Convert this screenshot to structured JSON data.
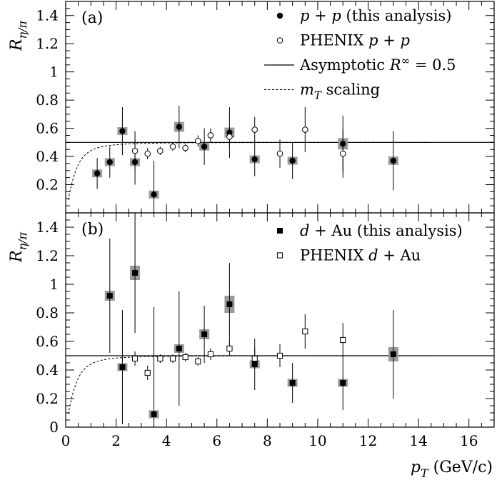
{
  "chart_data": [
    {
      "type": "scatter",
      "panel_label": "(a)",
      "ylabel": "R_{η/π}",
      "xlim": [
        0,
        17
      ],
      "ylim": [
        0,
        1.5
      ],
      "yticks": [
        0.2,
        0.4,
        0.6,
        0.8,
        1,
        1.2,
        1.4
      ],
      "ytick_labels": [
        "0.2",
        "0.4",
        "0.6",
        "0.8",
        "1",
        "1.2",
        "1.4"
      ],
      "legend_position": "top-right",
      "legend": [
        {
          "marker": "filled-circle",
          "text": "p + p (this analysis)"
        },
        {
          "marker": "open-circle",
          "text": "PHENIX p + p"
        },
        {
          "marker": "solid-line",
          "text": "Asymptotic R^∞ = 0.5"
        },
        {
          "marker": "dashed-line",
          "text": "m_T scaling"
        }
      ],
      "asymptote": {
        "y": 0.5,
        "x_range": [
          0,
          17
        ]
      },
      "mt_scaling": {
        "x_range": [
          0.1,
          14.5
        ],
        "asymptote": 0.5
      },
      "series": [
        {
          "name": "p + p (this analysis)",
          "marker": "filled-circle",
          "points": [
            {
              "x": 1.25,
              "y": 0.28,
              "err": 0.11,
              "sys": 0.012
            },
            {
              "x": 1.75,
              "y": 0.36,
              "err": 0.11,
              "sys": 0.015
            },
            {
              "x": 2.25,
              "y": 0.58,
              "err": 0.17,
              "sys": 0.025
            },
            {
              "x": 2.75,
              "y": 0.36,
              "err": 0.16,
              "sys": 0.02
            },
            {
              "x": 3.5,
              "y": 0.13,
              "err": 0.24,
              "sys": 0.005
            },
            {
              "x": 4.5,
              "y": 0.61,
              "err": 0.15,
              "sys": 0.035
            },
            {
              "x": 5.5,
              "y": 0.47,
              "err": 0.13,
              "sys": 0.025
            },
            {
              "x": 6.5,
              "y": 0.57,
              "err": 0.18,
              "sys": 0.035
            },
            {
              "x": 7.5,
              "y": 0.38,
              "err": 0.12,
              "sys": 0.02
            },
            {
              "x": 9.0,
              "y": 0.37,
              "err": 0.13,
              "sys": 0.02
            },
            {
              "x": 11.0,
              "y": 0.49,
              "err": 0.2,
              "sys": 0.04
            },
            {
              "x": 13.0,
              "y": 0.37,
              "err": 0.21,
              "sys": 0.03
            }
          ]
        },
        {
          "name": "PHENIX p + p",
          "marker": "open-circle",
          "points": [
            {
              "x": 2.75,
              "y": 0.44,
              "err": 0.14
            },
            {
              "x": 3.25,
              "y": 0.42,
              "err": 0.04
            },
            {
              "x": 3.75,
              "y": 0.44,
              "err": 0.03
            },
            {
              "x": 4.25,
              "y": 0.47,
              "err": 0.03
            },
            {
              "x": 4.75,
              "y": 0.46,
              "err": 0.03
            },
            {
              "x": 5.25,
              "y": 0.51,
              "err": 0.04
            },
            {
              "x": 5.75,
              "y": 0.55,
              "err": 0.05
            },
            {
              "x": 6.5,
              "y": 0.54,
              "err": 0.07
            },
            {
              "x": 7.5,
              "y": 0.59,
              "err": 0.09
            },
            {
              "x": 8.5,
              "y": 0.42,
              "err": 0.1
            },
            {
              "x": 9.5,
              "y": 0.59,
              "err": 0.16
            },
            {
              "x": 11.0,
              "y": 0.42,
              "err": 0.17
            }
          ]
        }
      ]
    },
    {
      "type": "scatter",
      "panel_label": "(b)",
      "xlabel": "p_T (GeV/c)",
      "ylabel": "R_{η/π}",
      "xlim": [
        0,
        17
      ],
      "ylim": [
        0,
        1.5
      ],
      "xticks": [
        0,
        2,
        4,
        6,
        8,
        10,
        12,
        14,
        16
      ],
      "xtick_labels": [
        "0",
        "2",
        "4",
        "6",
        "8",
        "10",
        "12",
        "14",
        "16"
      ],
      "yticks": [
        0,
        0.2,
        0.4,
        0.6,
        0.8,
        1,
        1.2,
        1.4
      ],
      "ytick_labels": [
        "0",
        "0.2",
        "0.4",
        "0.6",
        "0.8",
        "1",
        "1.2",
        "1.4"
      ],
      "legend_position": "top-right",
      "legend": [
        {
          "marker": "filled-square",
          "text": "d + Au (this analysis)"
        },
        {
          "marker": "open-square",
          "text": "PHENIX d + Au"
        }
      ],
      "asymptote": {
        "y": 0.5,
        "x_range": [
          0,
          17
        ]
      },
      "mt_scaling": {
        "x_range": [
          0.1,
          14.5
        ],
        "asymptote": 0.5
      },
      "series": [
        {
          "name": "d + Au (this analysis)",
          "marker": "filled-square",
          "points": [
            {
              "x": 1.75,
              "y": 0.92,
              "err": 0.4,
              "sys": 0.035
            },
            {
              "x": 2.25,
              "y": 0.42,
              "err": 0.4,
              "sys": 0.02
            },
            {
              "x": 2.75,
              "y": 1.08,
              "err": 0.42,
              "sys": 0.05
            },
            {
              "x": 3.5,
              "y": 0.09,
              "err": 0.75,
              "sys": 0.01
            },
            {
              "x": 4.5,
              "y": 0.55,
              "err": 0.4,
              "sys": 0.03
            },
            {
              "x": 5.5,
              "y": 0.65,
              "err": 0.2,
              "sys": 0.035
            },
            {
              "x": 6.5,
              "y": 0.86,
              "err": 0.29,
              "sys": 0.06
            },
            {
              "x": 7.5,
              "y": 0.44,
              "err": 0.18,
              "sys": 0.025
            },
            {
              "x": 9.0,
              "y": 0.31,
              "err": 0.14,
              "sys": 0.015
            },
            {
              "x": 11.0,
              "y": 0.31,
              "err": 0.19,
              "sys": 0.02
            },
            {
              "x": 13.0,
              "y": 0.51,
              "err": 0.31,
              "sys": 0.05
            }
          ]
        },
        {
          "name": "PHENIX d + Au",
          "marker": "open-square",
          "points": [
            {
              "x": 2.75,
              "y": 0.48,
              "err": 0.05
            },
            {
              "x": 3.25,
              "y": 0.38,
              "err": 0.05
            },
            {
              "x": 3.75,
              "y": 0.48,
              "err": 0.03
            },
            {
              "x": 4.25,
              "y": 0.48,
              "err": 0.03
            },
            {
              "x": 4.75,
              "y": 0.49,
              "err": 0.03
            },
            {
              "x": 5.25,
              "y": 0.46,
              "err": 0.03
            },
            {
              "x": 5.75,
              "y": 0.51,
              "err": 0.04
            },
            {
              "x": 6.5,
              "y": 0.55,
              "err": 0.05
            },
            {
              "x": 7.5,
              "y": 0.48,
              "err": 0.07
            },
            {
              "x": 8.5,
              "y": 0.5,
              "err": 0.08
            },
            {
              "x": 9.5,
              "y": 0.67,
              "err": 0.12
            },
            {
              "x": 11.0,
              "y": 0.61,
              "err": 0.12
            }
          ]
        }
      ]
    }
  ]
}
